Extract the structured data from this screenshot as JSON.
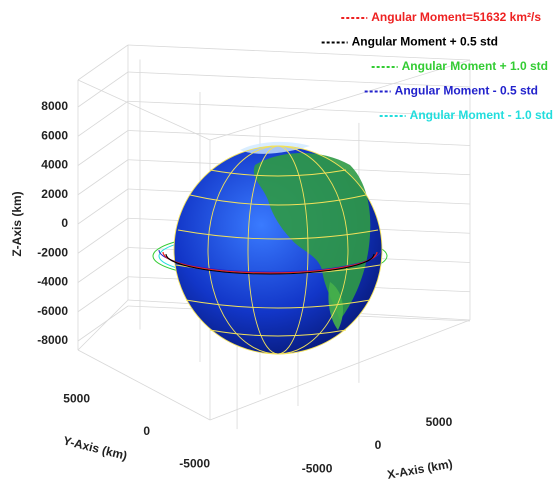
{
  "chart_data": {
    "type": "orbit3d",
    "series": [
      {
        "name": "Angular Moment=51632 km²/s",
        "color": "#ee2222"
      },
      {
        "name": "Angular Moment + 0.5 std",
        "color": "#000000"
      },
      {
        "name": "Angular Moment + 1.0 std",
        "color": "#33cc33"
      },
      {
        "name": "Angular Moment - 0.5 std",
        "color": "#2222cc"
      },
      {
        "name": "Angular Moment - 1.0 std",
        "color": "#22dddd"
      }
    ],
    "xlabel": "X-Axis (km)",
    "ylabel": "Y-Axis (km)",
    "zlabel": "Z-Axis (km)",
    "xlim": [
      -8000,
      8000
    ],
    "ylim": [
      -8000,
      8000
    ],
    "zlim": [
      -8000,
      8000
    ],
    "xticks": [
      -5000,
      0,
      5000
    ],
    "yticks": [
      -5000,
      0,
      5000
    ],
    "zticks": [
      -8000,
      -6000,
      -4000,
      -2000,
      0,
      2000,
      4000,
      6000,
      8000
    ],
    "grid": true
  }
}
